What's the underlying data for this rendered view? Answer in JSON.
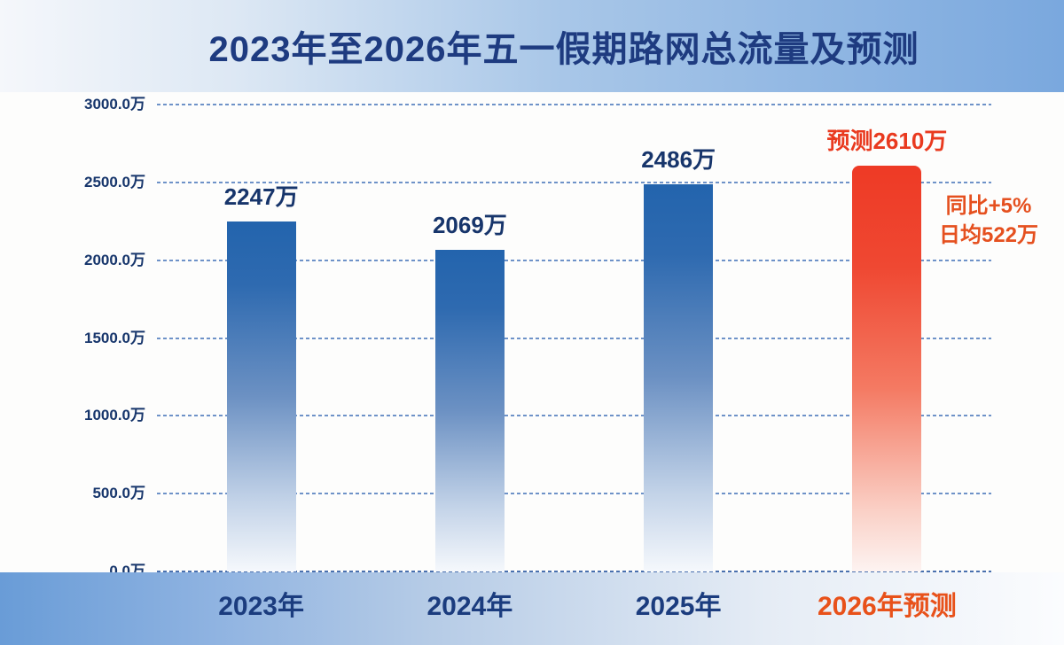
{
  "title": "2023年至2026年五一假期路网总流量及预测",
  "chart_data": {
    "type": "bar",
    "title": "2023年至2026年五一假期路网总流量及预测",
    "categories": [
      "2023年",
      "2024年",
      "2025年",
      "2026年预测"
    ],
    "values": [
      2247,
      2069,
      2486,
      2610
    ],
    "bar_labels": [
      "2247万",
      "2069万",
      "2486万",
      "预测2610万"
    ],
    "unit": "万",
    "ylim": [
      0,
      3000
    ],
    "ytick_step": 500,
    "ytick_labels": [
      "3000.0万",
      "2500.0万",
      "2000.0万",
      "1500.0万",
      "1000.0万",
      "500.0万",
      "0.0万"
    ],
    "grid": "horizontal dashed",
    "legend": "none",
    "forecast_index": 3,
    "annotation": [
      "同比+5%",
      "日均522万"
    ]
  },
  "colors": {
    "title_text": "#1e3b80",
    "bar_blue_top": "#2364ad",
    "bar_red_top": "#ee3a25",
    "value_label_navy": "#17356b",
    "value_label_red": "#e93a1f",
    "annotation_red": "#e5501f",
    "axis_label_navy": "#1b3c7e",
    "axis_label_forecast": "#e8511a",
    "gridline_blue": "#6e92c8"
  }
}
